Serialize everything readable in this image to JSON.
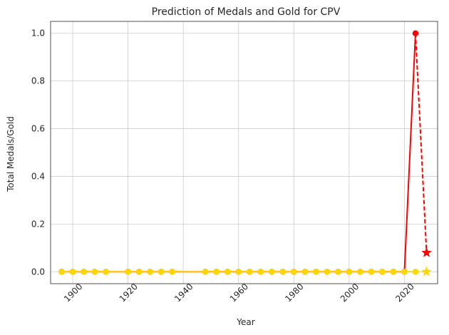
{
  "chart_data": {
    "type": "line",
    "title": "Prediction of Medals and Gold for CPV",
    "xlabel": "Year",
    "ylabel": "Total Medals/Gold",
    "xlim": [
      1892,
      2032
    ],
    "ylim": [
      -0.05,
      1.05
    ],
    "x_ticks": [
      "1900",
      "1920",
      "1940",
      "1960",
      "1980",
      "2000",
      "2020"
    ],
    "y_ticks": [
      "0.0",
      "0.2",
      "0.4",
      "0.6",
      "0.8",
      "1.0"
    ],
    "grid": true,
    "x_tick_rotation": 45,
    "colors": {
      "medals": "#ff0000",
      "gold": "#ffd700",
      "grid": "#cccccc",
      "spine": "#262626"
    },
    "series": [
      {
        "role": "medals",
        "x": [
          1896,
          1900,
          1904,
          1908,
          1912,
          1920,
          1924,
          1928,
          1932,
          1936,
          1948,
          1952,
          1956,
          1960,
          1964,
          1968,
          1972,
          1976,
          1980,
          1984,
          1988,
          1992,
          1996,
          2000,
          2004,
          2008,
          2012,
          2016,
          2020,
          2024
        ],
        "values": [
          0,
          0,
          0,
          0,
          0,
          0,
          0,
          0,
          0,
          0,
          0,
          0,
          0,
          0,
          0,
          0,
          0,
          0,
          0,
          0,
          0,
          0,
          0,
          0,
          0,
          0,
          0,
          0,
          0,
          1
        ],
        "marker": "circle"
      },
      {
        "role": "gold",
        "x": [
          1896,
          1900,
          1904,
          1908,
          1912,
          1920,
          1924,
          1928,
          1932,
          1936,
          1948,
          1952,
          1956,
          1960,
          1964,
          1968,
          1972,
          1976,
          1980,
          1984,
          1988,
          1992,
          1996,
          2000,
          2004,
          2008,
          2012,
          2016,
          2020,
          2024
        ],
        "values": [
          0,
          0,
          0,
          0,
          0,
          0,
          0,
          0,
          0,
          0,
          0,
          0,
          0,
          0,
          0,
          0,
          0,
          0,
          0,
          0,
          0,
          0,
          0,
          0,
          0,
          0,
          0,
          0,
          0,
          0
        ],
        "marker": "circle"
      },
      {
        "role": "medals-prediction",
        "x": [
          2024,
          2028
        ],
        "values": [
          1,
          0.08
        ],
        "line": "dashed",
        "marker": "star"
      },
      {
        "role": "gold-prediction",
        "x": [
          2024,
          2028
        ],
        "values": [
          0,
          0
        ],
        "line": "dashed",
        "marker": "star"
      }
    ]
  }
}
